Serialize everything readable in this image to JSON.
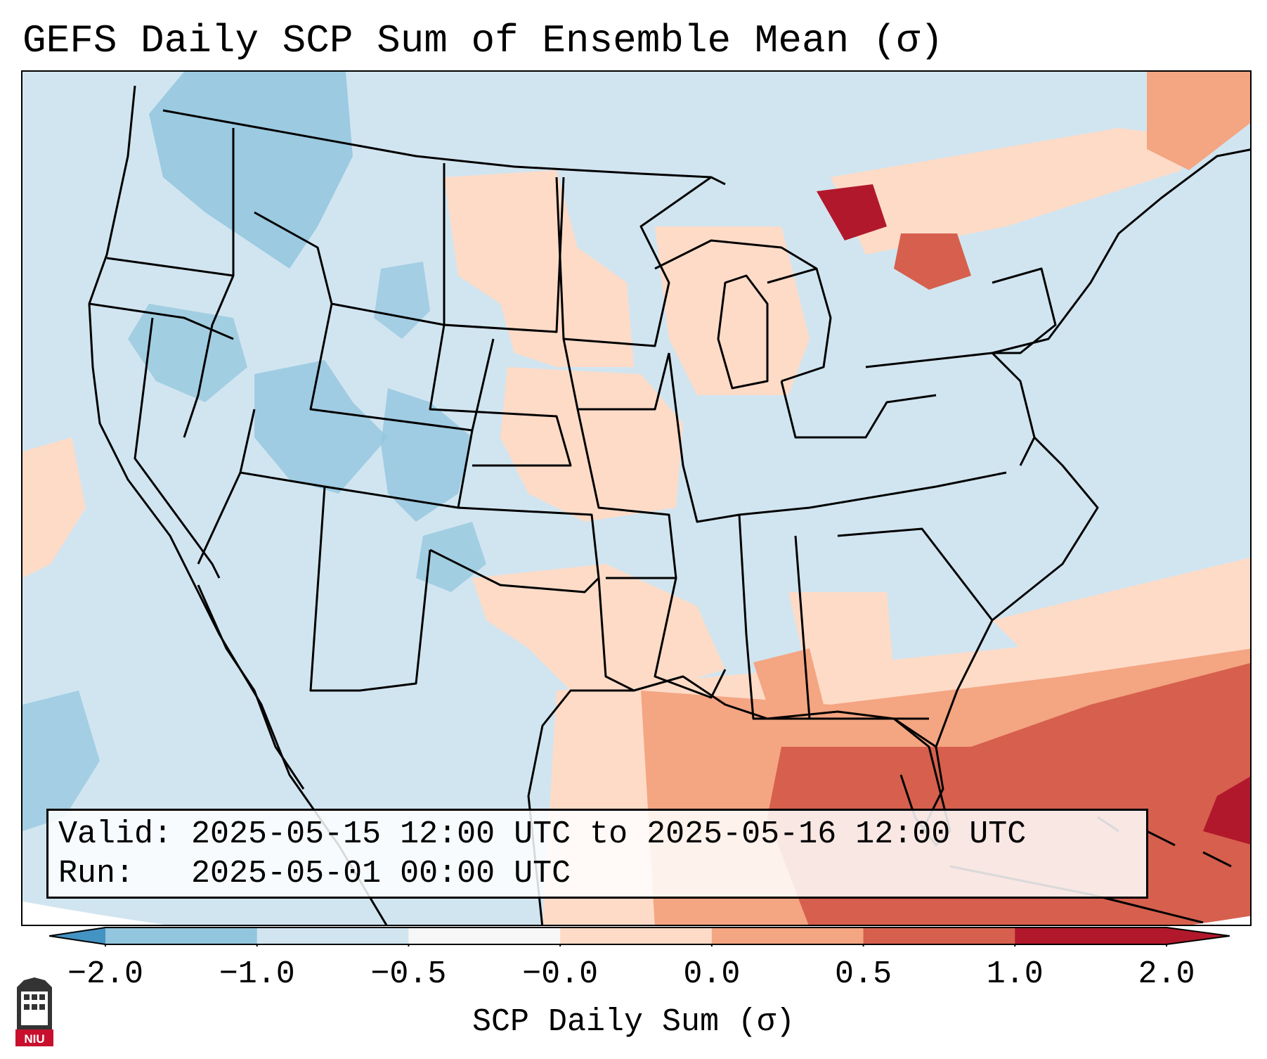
{
  "title": "GEFS Daily SCP Sum of Ensemble Mean (σ)",
  "info": {
    "valid_label": "Valid:",
    "valid_value": "2025-05-15 12:00 UTC to 2025-05-16 12:00 UTC",
    "run_label": "Run:",
    "run_value": "2025-05-01 00:00 UTC"
  },
  "colorbar": {
    "label": "SCP Daily Sum (σ)",
    "ticks": [
      "−2.0",
      "−1.0",
      "−0.5",
      "−0.0",
      "0.0",
      "0.5",
      "1.0",
      "2.0"
    ],
    "colors": [
      "#4393c3",
      "#92c5de",
      "#d1e5f0",
      "#f7f7f7",
      "#fddbc7",
      "#f4a582",
      "#d6604d",
      "#b2182b"
    ],
    "extend": "both"
  },
  "map": {
    "background_color": "#d1e5f0",
    "region": "Continental United States"
  },
  "logo": {
    "text": "NIU"
  }
}
